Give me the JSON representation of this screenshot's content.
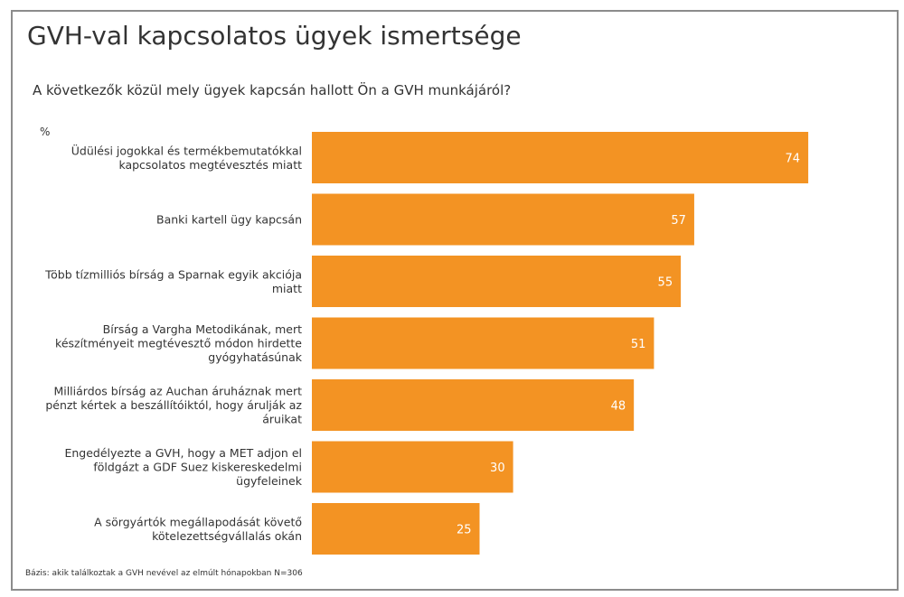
{
  "header": {
    "title": "GVH-val kapcsolatos ügyek ismertsége",
    "question": "A következők közül mely ügyek kapcsán hallott Ön a GVH munkájáról?",
    "unit": "%"
  },
  "footnote": "Bázis: akik találkoztak a GVH nevével az elmúlt hónapokban N=306",
  "colors": {
    "bar": "#F39323",
    "frame": "#8c8c8c"
  },
  "chart_data": {
    "type": "bar",
    "orientation": "horizontal",
    "title": "GVH-val kapcsolatos ügyek ismertsége",
    "ylabel": "%",
    "grid": false,
    "categories": [
      [
        "Üdülési jogokkal és termékbemutatókkal",
        "kapcsolatos megtévesztés miatt"
      ],
      [
        "Banki kartell ügy kapcsán"
      ],
      [
        "Több tízmilliós bírság a Sparnak egyik akciója",
        "miatt"
      ],
      [
        "Bírság a Vargha Metodikának, mert",
        "készítményeit megtévesztő módon hirdette",
        "gyógyhatásúnak"
      ],
      [
        "Milliárdos bírság az Auchan áruháznak mert",
        "pénzt kértek a beszállítóiktól, hogy árulják az",
        "áruikat"
      ],
      [
        "Engedélyezte a GVH, hogy a MET adjon el",
        "földgázt a GDF Suez kiskereskedelmi",
        "ügyfeleinek"
      ],
      [
        "A sörgyártók megállapodását követő",
        "kötelezettségvállalás okán"
      ]
    ],
    "values": [
      74,
      57,
      55,
      51,
      48,
      30,
      25
    ],
    "xlim": [
      0,
      100
    ]
  }
}
